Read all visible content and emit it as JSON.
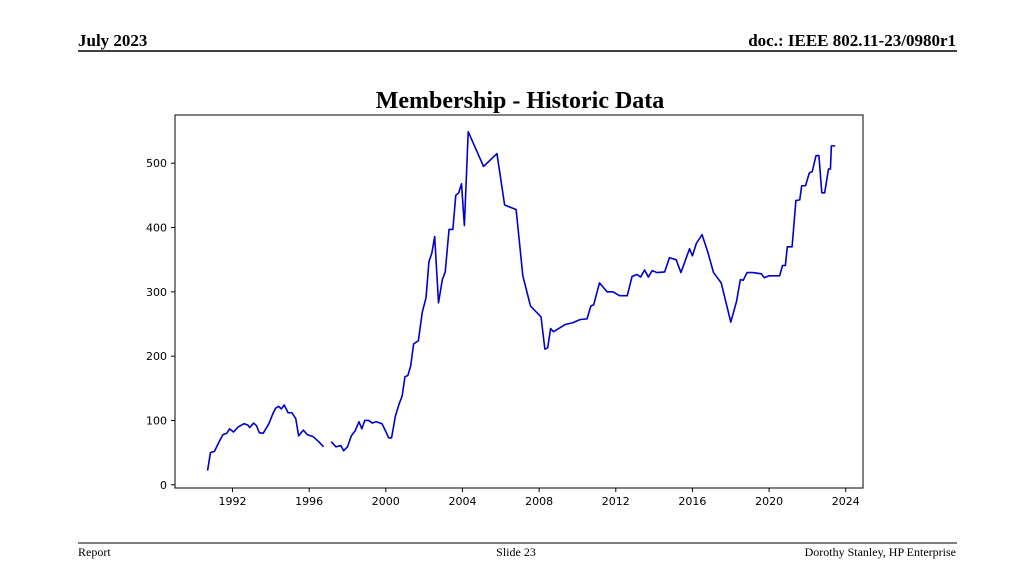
{
  "header": {
    "left": "July 2023",
    "right": "doc.: IEEE 802.11-23/0980r1"
  },
  "footer": {
    "left": "Report",
    "center": "Slide 23",
    "right": "Dorothy Stanley, HP Enterprise"
  },
  "chart_data": {
    "type": "line",
    "title": "Membership - Historic Data",
    "xlim": [
      1989.0,
      2024.9
    ],
    "xticks": [
      1992,
      1996,
      2000,
      2004,
      2008,
      2012,
      2016,
      2020,
      2024
    ],
    "ylim": [
      -5,
      575
    ],
    "yticks": [
      0,
      100,
      200,
      300,
      400,
      500
    ],
    "grid": false,
    "x": [
      1990.7,
      1990.85,
      1991.06,
      1991.27,
      1991.5,
      1991.7,
      1991.85,
      1992.05,
      1992.3,
      1992.6,
      1992.8,
      1992.9,
      1993.1,
      1993.25,
      1993.4,
      1993.6,
      1993.9,
      1994.1,
      1994.25,
      1994.4,
      1994.55,
      1994.7,
      1994.9,
      1995.1,
      1995.3,
      1995.45,
      1995.7,
      1995.9,
      1996.2,
      1996.5,
      1996.75,
      1997.0,
      1997.15,
      1997.4,
      1997.65,
      1997.8,
      1998.0,
      1998.2,
      1998.4,
      1998.6,
      1998.75,
      1998.9,
      1999.1,
      1999.3,
      1999.5,
      1999.8,
      1999.95,
      2000.15,
      2000.3,
      2000.5,
      2000.7,
      2000.85,
      2001.0,
      2001.15,
      2001.3,
      2001.45,
      2001.7,
      2001.9,
      2002.1,
      2002.25,
      2002.4,
      2002.55,
      2002.75,
      2002.95,
      2003.1,
      2003.3,
      2003.5,
      2003.65,
      2003.8,
      2003.95,
      2004.1,
      2004.3,
      2005.1,
      2005.8,
      2006.2,
      2006.8,
      2007.15,
      2007.55,
      2008.1,
      2008.3,
      2008.45,
      2008.6,
      2008.75,
      2009.35,
      2009.75,
      2010.15,
      2010.5,
      2010.7,
      2010.85,
      2011.15,
      2011.55,
      2011.85,
      2012.2,
      2012.6,
      2012.85,
      2013.1,
      2013.3,
      2013.5,
      2013.7,
      2013.9,
      2014.15,
      2014.55,
      2014.8,
      2015.15,
      2015.4,
      2015.85,
      2016.0,
      2016.2,
      2016.5,
      2016.8,
      2017.1,
      2017.5,
      2018.0,
      2018.3,
      2018.5,
      2018.65,
      2018.85,
      2019.15,
      2019.6,
      2019.75,
      2020.0,
      2020.55,
      2020.7,
      2020.85,
      2020.95,
      2021.2,
      2021.4,
      2021.6,
      2021.7,
      2021.9,
      2022.1,
      2022.25,
      2022.45,
      2022.6,
      2022.75,
      2022.9,
      2023.1,
      2023.2,
      2023.25,
      2023.45
    ],
    "series": [
      {
        "name": "Membership",
        "color": "#0000cc",
        "values": [
          22,
          50,
          52,
          65,
          78,
          80,
          87,
          82,
          90,
          95,
          93,
          89,
          96,
          92,
          81,
          80,
          95,
          110,
          119,
          122,
          118,
          124,
          112,
          112,
          103,
          76,
          85,
          78,
          75,
          67,
          59,
          null,
          67,
          59,
          61,
          53,
          59,
          76,
          84,
          98,
          87,
          100,
          100,
          96,
          98,
          95,
          86,
          73,
          73,
          107,
          126,
          138,
          168,
          170,
          185,
          219,
          224,
          268,
          291,
          347,
          360,
          386,
          283,
          319,
          331,
          397,
          397,
          450,
          454,
          468,
          403,
          549,
          495,
          515,
          435,
          428,
          325,
          278,
          261,
          211,
          213,
          243,
          238,
          249,
          252,
          257,
          258,
          278,
          280,
          314,
          300,
          300,
          294,
          294,
          324,
          327,
          323,
          334,
          323,
          333,
          330,
          331,
          353,
          350,
          330,
          367,
          356,
          375,
          389,
          362,
          330,
          314,
          253,
          285,
          319,
          318,
          330,
          330,
          328,
          322,
          325,
          325,
          341,
          341,
          370,
          370,
          442,
          443,
          465,
          465,
          485,
          487,
          512,
          512,
          454,
          454,
          491,
          491,
          527,
          527
        ]
      }
    ]
  }
}
